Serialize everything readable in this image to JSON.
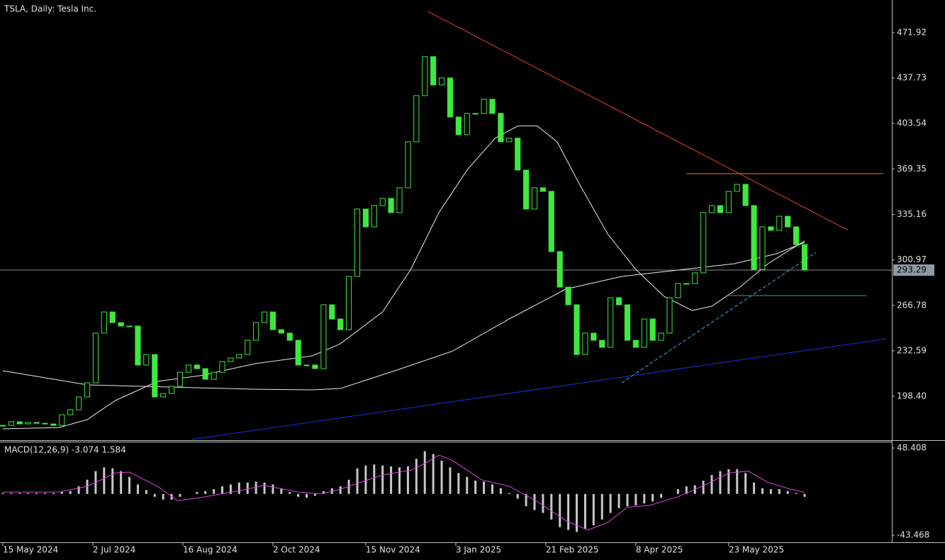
{
  "chart_data": [
    {
      "type": "candlestick",
      "title": "TSLA, Daily:  Tesla Inc.",
      "color": "#3ee83e",
      "x": [
        0,
        3,
        6,
        9,
        12,
        15,
        18,
        21,
        24,
        27,
        30,
        33,
        36,
        39,
        42,
        45,
        48,
        51,
        54,
        57,
        60,
        63,
        66,
        69,
        72,
        75,
        78,
        81,
        84,
        87,
        90,
        93,
        96,
        99,
        102,
        105,
        108,
        111,
        114,
        117,
        120,
        123,
        126,
        129,
        132,
        135,
        138,
        141,
        144,
        147,
        150,
        153,
        156,
        159,
        162,
        165,
        168,
        171,
        174,
        177,
        180,
        183,
        186,
        189,
        192,
        195,
        198,
        201,
        204,
        207,
        210,
        213,
        216,
        219,
        222,
        225,
        228,
        231,
        234,
        237,
        240,
        243,
        246,
        249,
        252,
        255,
        258,
        261,
        264,
        267,
        270,
        273,
        276,
        279,
        282,
        285
      ],
      "close": [
        176.5,
        179.2,
        177.6,
        178.7,
        178.1,
        177.6,
        176.5,
        184.5,
        188.3,
        197.9,
        208.5,
        245.9,
        261.8,
        253.8,
        251.2,
        251.2,
        221.9,
        229.8,
        197.9,
        200.5,
        205.9,
        216.5,
        221.9,
        219.2,
        211.2,
        216.5,
        224.5,
        227.2,
        229.8,
        240.5,
        253.8,
        261.8,
        248.5,
        245.9,
        240.5,
        221.9,
        221.9,
        219.2,
        267.2,
        256.5,
        248.5,
        288.5,
        339.2,
        325.8,
        341.8,
        347.2,
        336.5,
        355.2,
        389.8,
        424.5,
        453.8,
        432.5,
        437.8,
        408.4,
        395.1,
        411.1,
        411.1,
        421.8,
        411.1,
        389.8,
        392.5,
        368.5,
        339.2,
        355.2,
        352.5,
        307.2,
        280.5,
        267.2,
        229.8,
        245.9,
        240.5,
        235.2,
        272.5,
        267.2,
        240.5,
        235.2,
        256.5,
        240.5,
        245.9,
        272.5,
        283.2,
        283.2,
        291.2,
        336.5,
        341.8,
        336.5,
        352.5,
        357.8,
        341.8,
        293.8,
        325.8,
        323.2,
        333.8,
        325.8,
        312.5,
        293.29
      ],
      "xlim": [
        -1,
        316
      ],
      "xticks": [
        {
          "value": 0,
          "label": "15 May 2024"
        },
        {
          "value": 32,
          "label": "2 Jul 2024"
        },
        {
          "value": 64,
          "label": "16 Aug 2024"
        },
        {
          "value": 96,
          "label": "2 Oct 2024"
        },
        {
          "value": 129,
          "label": "15 Nov 2024"
        },
        {
          "value": 161,
          "label": "3 Jan 2025"
        },
        {
          "value": 193,
          "label": "21 Feb 2025"
        },
        {
          "value": 225,
          "label": "8 Apr 2025"
        },
        {
          "value": 258,
          "label": "23 May 2025"
        }
      ],
      "ylim": [
        165.9,
        496.4
      ],
      "yticks": [
        471.92,
        437.73,
        403.54,
        369.35,
        335.16,
        300.97,
        266.78,
        232.59,
        {
          "value": 198.4,
          "label": "198.40"
        }
      ],
      "last_price": 293.29,
      "lines": [
        {
          "color": "#e8e8e8",
          "x": [
            0,
            30,
            60,
            90,
            110,
            120,
            140,
            160,
            180,
            200,
            220,
            240,
            260,
            275,
            285
          ],
          "values": [
            217.6,
            207.0,
            205.3,
            203.7,
            203.2,
            204.3,
            218.1,
            232.5,
            256.5,
            278.9,
            288.5,
            293.3,
            298.1,
            305.6,
            314.1
          ]
        },
        {
          "color": "#e8e8e8",
          "x": [
            0,
            20,
            30,
            40,
            55,
            70,
            90,
            110,
            120,
            135,
            145,
            155,
            165,
            175,
            183,
            190,
            197,
            205,
            215,
            225,
            235,
            245,
            252,
            262,
            272,
            280,
            285
          ],
          "values": [
            173.9,
            174.9,
            180.8,
            195.2,
            209.6,
            213.9,
            223.0,
            228.8,
            237.9,
            261.9,
            293.8,
            336.5,
            368.5,
            392.5,
            401.6,
            401.6,
            389.8,
            357.8,
            320.5,
            293.8,
            273.6,
            262.9,
            266.1,
            280.5,
            298.1,
            308.8,
            315.2
          ]
        }
      ],
      "trendlines": [
        {
          "color": "#e8402a",
          "x": [
            151,
            300.5
          ],
          "values": [
            487.9,
            323.2
          ],
          "dashed": false
        },
        {
          "color": "#f07a3a",
          "x": [
            243,
            313
          ],
          "values": [
            365.8,
            365.8
          ],
          "dashed": false
        },
        {
          "color": "#2030e0",
          "x": [
            67,
            314
          ],
          "values": [
            165.9,
            241.6
          ],
          "dashed": false
        },
        {
          "color": "#3ab0e8",
          "x": [
            220,
            289
          ],
          "values": [
            208.5,
            306.6
          ],
          "dashed": true
        },
        {
          "color": "#2aa88a",
          "x": [
            258,
            307
          ],
          "values": [
            274.1,
            274.1
          ],
          "dashed": false
        }
      ]
    },
    {
      "type": "macd",
      "label": "MACD(12,26,9) -3.074 1.584",
      "color": "#c8c8c8",
      "x": [
        0,
        3,
        6,
        9,
        12,
        15,
        18,
        21,
        24,
        27,
        30,
        33,
        36,
        39,
        42,
        45,
        48,
        51,
        54,
        57,
        60,
        63,
        66,
        69,
        72,
        75,
        78,
        81,
        84,
        87,
        90,
        93,
        96,
        99,
        102,
        105,
        108,
        111,
        114,
        117,
        120,
        123,
        126,
        129,
        132,
        135,
        138,
        141,
        144,
        147,
        150,
        153,
        156,
        159,
        162,
        165,
        168,
        171,
        174,
        177,
        180,
        183,
        186,
        189,
        192,
        195,
        198,
        201,
        204,
        207,
        210,
        213,
        216,
        219,
        222,
        225,
        228,
        231,
        234,
        237,
        240,
        243,
        246,
        249,
        252,
        255,
        258,
        261,
        264,
        267,
        270,
        273,
        276,
        279,
        282,
        285
      ],
      "values": [
        1,
        1,
        1,
        1,
        1,
        1,
        1,
        2,
        3,
        8,
        15,
        24,
        28,
        27,
        24,
        18,
        10,
        4,
        -3,
        -6,
        -6,
        -3,
        0,
        2,
        3,
        5,
        8,
        10,
        12,
        12,
        13,
        12,
        10,
        6,
        2,
        -3,
        -4,
        -2,
        3,
        6,
        8,
        15,
        27,
        30,
        31,
        30,
        29,
        28,
        29,
        37,
        45,
        42,
        35,
        28,
        22,
        18,
        14,
        13,
        10,
        6,
        1,
        -5,
        -13,
        -17,
        -20,
        -27,
        -35,
        -38,
        -40,
        -37,
        -33,
        -27,
        -20,
        -15,
        -13,
        -12,
        -10,
        -8,
        -4,
        0,
        5,
        8,
        9,
        14,
        20,
        24,
        26,
        26,
        22,
        12,
        6,
        5,
        5,
        3,
        1,
        -3.074
      ],
      "signal": {
        "color": "#e040e0",
        "x": [
          0,
          20,
          30,
          40,
          45,
          55,
          62,
          70,
          85,
          93,
          105,
          113,
          120,
          135,
          145,
          150,
          155,
          160,
          170,
          180,
          190,
          200,
          208,
          215,
          222,
          230,
          240,
          250,
          258,
          265,
          272,
          280,
          285
        ],
        "values": [
          2,
          2,
          8,
          22,
          23,
          8,
          -7,
          -4,
          4,
          9,
          2,
          0,
          5,
          20,
          25,
          32,
          41,
          35,
          15,
          8,
          -8,
          -28,
          -38,
          -30,
          -14,
          -12,
          -3,
          10,
          22,
          24,
          12,
          5,
          1.584
        ]
      },
      "ylim": [
        -50.94,
        54.38
      ],
      "yticks": [
        48.408,
        -43.468
      ]
    }
  ]
}
